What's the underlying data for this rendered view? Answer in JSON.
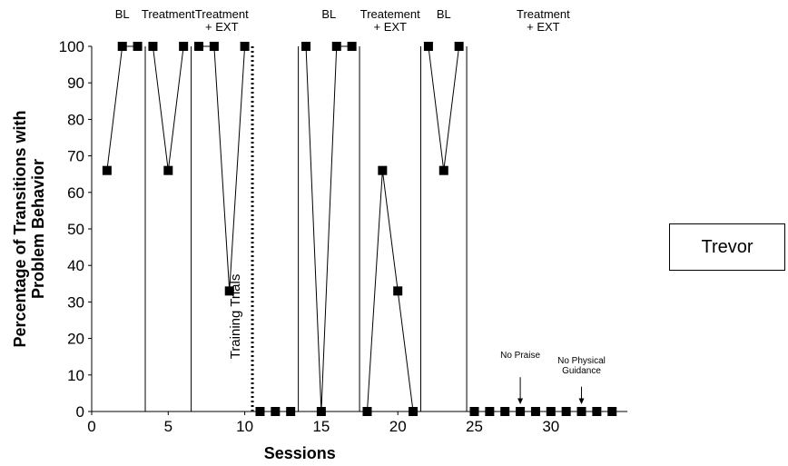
{
  "subject_label": "Trevor",
  "chart_data": {
    "type": "line",
    "title": "",
    "xlabel": "Sessions",
    "ylabel": "Percentage of Transitions with Problem Behavior",
    "xlim": [
      0,
      35
    ],
    "ylim": [
      0,
      100
    ],
    "x_ticks": [
      0,
      5,
      10,
      15,
      20,
      25,
      30
    ],
    "y_ticks": [
      0,
      10,
      20,
      30,
      40,
      50,
      60,
      70,
      80,
      90,
      100
    ],
    "grid": false,
    "phases": [
      {
        "label": "BL",
        "sessions": [
          1,
          2,
          3
        ]
      },
      {
        "label": "Treatment",
        "sessions": [
          4,
          5,
          6
        ]
      },
      {
        "label": "Treatment + EXT",
        "sessions": [
          7,
          8,
          9,
          10
        ]
      },
      {
        "label": "",
        "sessions": [
          11,
          12,
          13
        ]
      },
      {
        "label": "BL",
        "sessions": [
          14,
          15,
          16,
          17
        ]
      },
      {
        "label": "Treatement + EXT",
        "sessions": [
          18,
          19,
          20,
          21
        ]
      },
      {
        "label": "BL",
        "sessions": [
          22,
          23,
          24
        ]
      },
      {
        "label": "Treatment + EXT",
        "sessions": [
          25,
          26,
          27,
          28,
          29,
          30,
          31,
          32,
          33,
          34
        ]
      }
    ],
    "phase_change_lines": [
      3.5,
      6.5,
      13.5,
      17.5,
      21.5,
      24.5
    ],
    "dashed_line": {
      "x": 10.5,
      "label": "Training Trials"
    },
    "series": [
      {
        "x": [
          1,
          2,
          3,
          4,
          5,
          6,
          7,
          8,
          9,
          10,
          11,
          12,
          13,
          14,
          15,
          16,
          17,
          18,
          19,
          20,
          21,
          22,
          23,
          24,
          25,
          26,
          27,
          28,
          29,
          30,
          31,
          32,
          33,
          34
        ],
        "values": [
          66,
          100,
          100,
          100,
          66,
          100,
          100,
          100,
          33,
          100,
          0,
          0,
          0,
          100,
          0,
          100,
          100,
          0,
          66,
          33,
          0,
          100,
          66,
          100,
          0,
          0,
          0,
          0,
          0,
          0,
          0,
          0,
          0,
          0
        ]
      }
    ],
    "annotations": [
      {
        "text": "No Praise",
        "x": 28
      },
      {
        "text": "No Physical Guidance",
        "x": 32
      }
    ]
  }
}
